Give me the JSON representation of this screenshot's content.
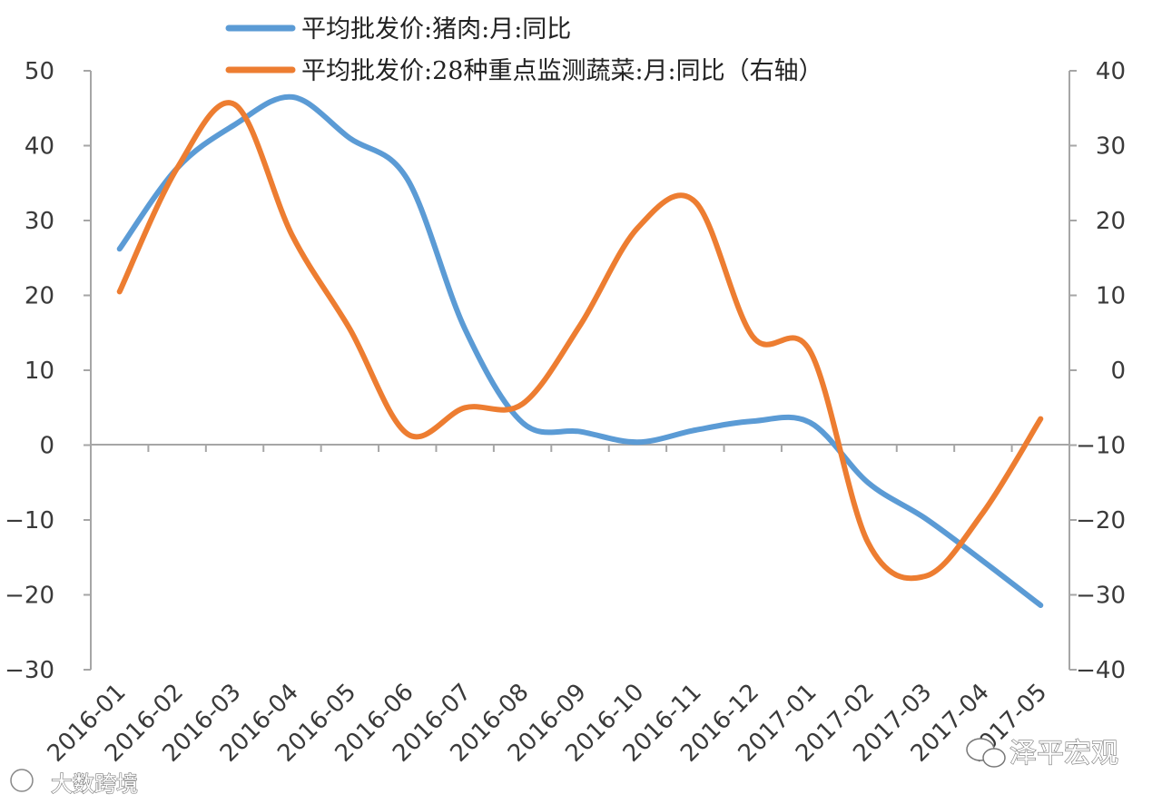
{
  "chart_data": {
    "type": "line",
    "categories": [
      "2016-01",
      "2016-02",
      "2016-03",
      "2016-04",
      "2016-05",
      "2016-06",
      "2016-07",
      "2016-08",
      "2016-09",
      "2016-10",
      "2016-11",
      "2016-12",
      "2017-01",
      "2017-02",
      "2017-03",
      "2017-04",
      "2017-05"
    ],
    "series": [
      {
        "name": "平均批发价:猪肉:月:同比",
        "axis": "left",
        "color": "#5b9bd5",
        "values": [
          26.2,
          37.0,
          42.8,
          46.5,
          41.0,
          35.5,
          15.5,
          3.0,
          1.8,
          0.4,
          2.0,
          3.2,
          3.0,
          -5.0,
          -9.8,
          -15.5,
          -21.4
        ]
      },
      {
        "name": "平均批发价:28种重点监测蔬菜:月:同比（右轴）",
        "axis": "right",
        "color": "#ed7d31",
        "values": [
          10.5,
          27.0,
          35.5,
          18.0,
          5.5,
          -8.5,
          -5.0,
          -4.5,
          6.0,
          19.0,
          22.5,
          4.5,
          2.5,
          -23.0,
          -27.5,
          -19.0,
          -6.5
        ]
      }
    ],
    "y_left": {
      "ylim": [
        -30,
        50
      ],
      "ticks": [
        "50",
        "40",
        "30",
        "20",
        "10",
        "0",
        "−10",
        "−20",
        "−30"
      ]
    },
    "y_right": {
      "ylim": [
        -40,
        40
      ],
      "ticks": [
        "40",
        "30",
        "20",
        "10",
        "0",
        "−10",
        "−20",
        "−30",
        "−40"
      ]
    },
    "grid": false,
    "legend_position": "top"
  },
  "watermarks": {
    "right": "泽平宏观",
    "left": "大数跨境"
  }
}
